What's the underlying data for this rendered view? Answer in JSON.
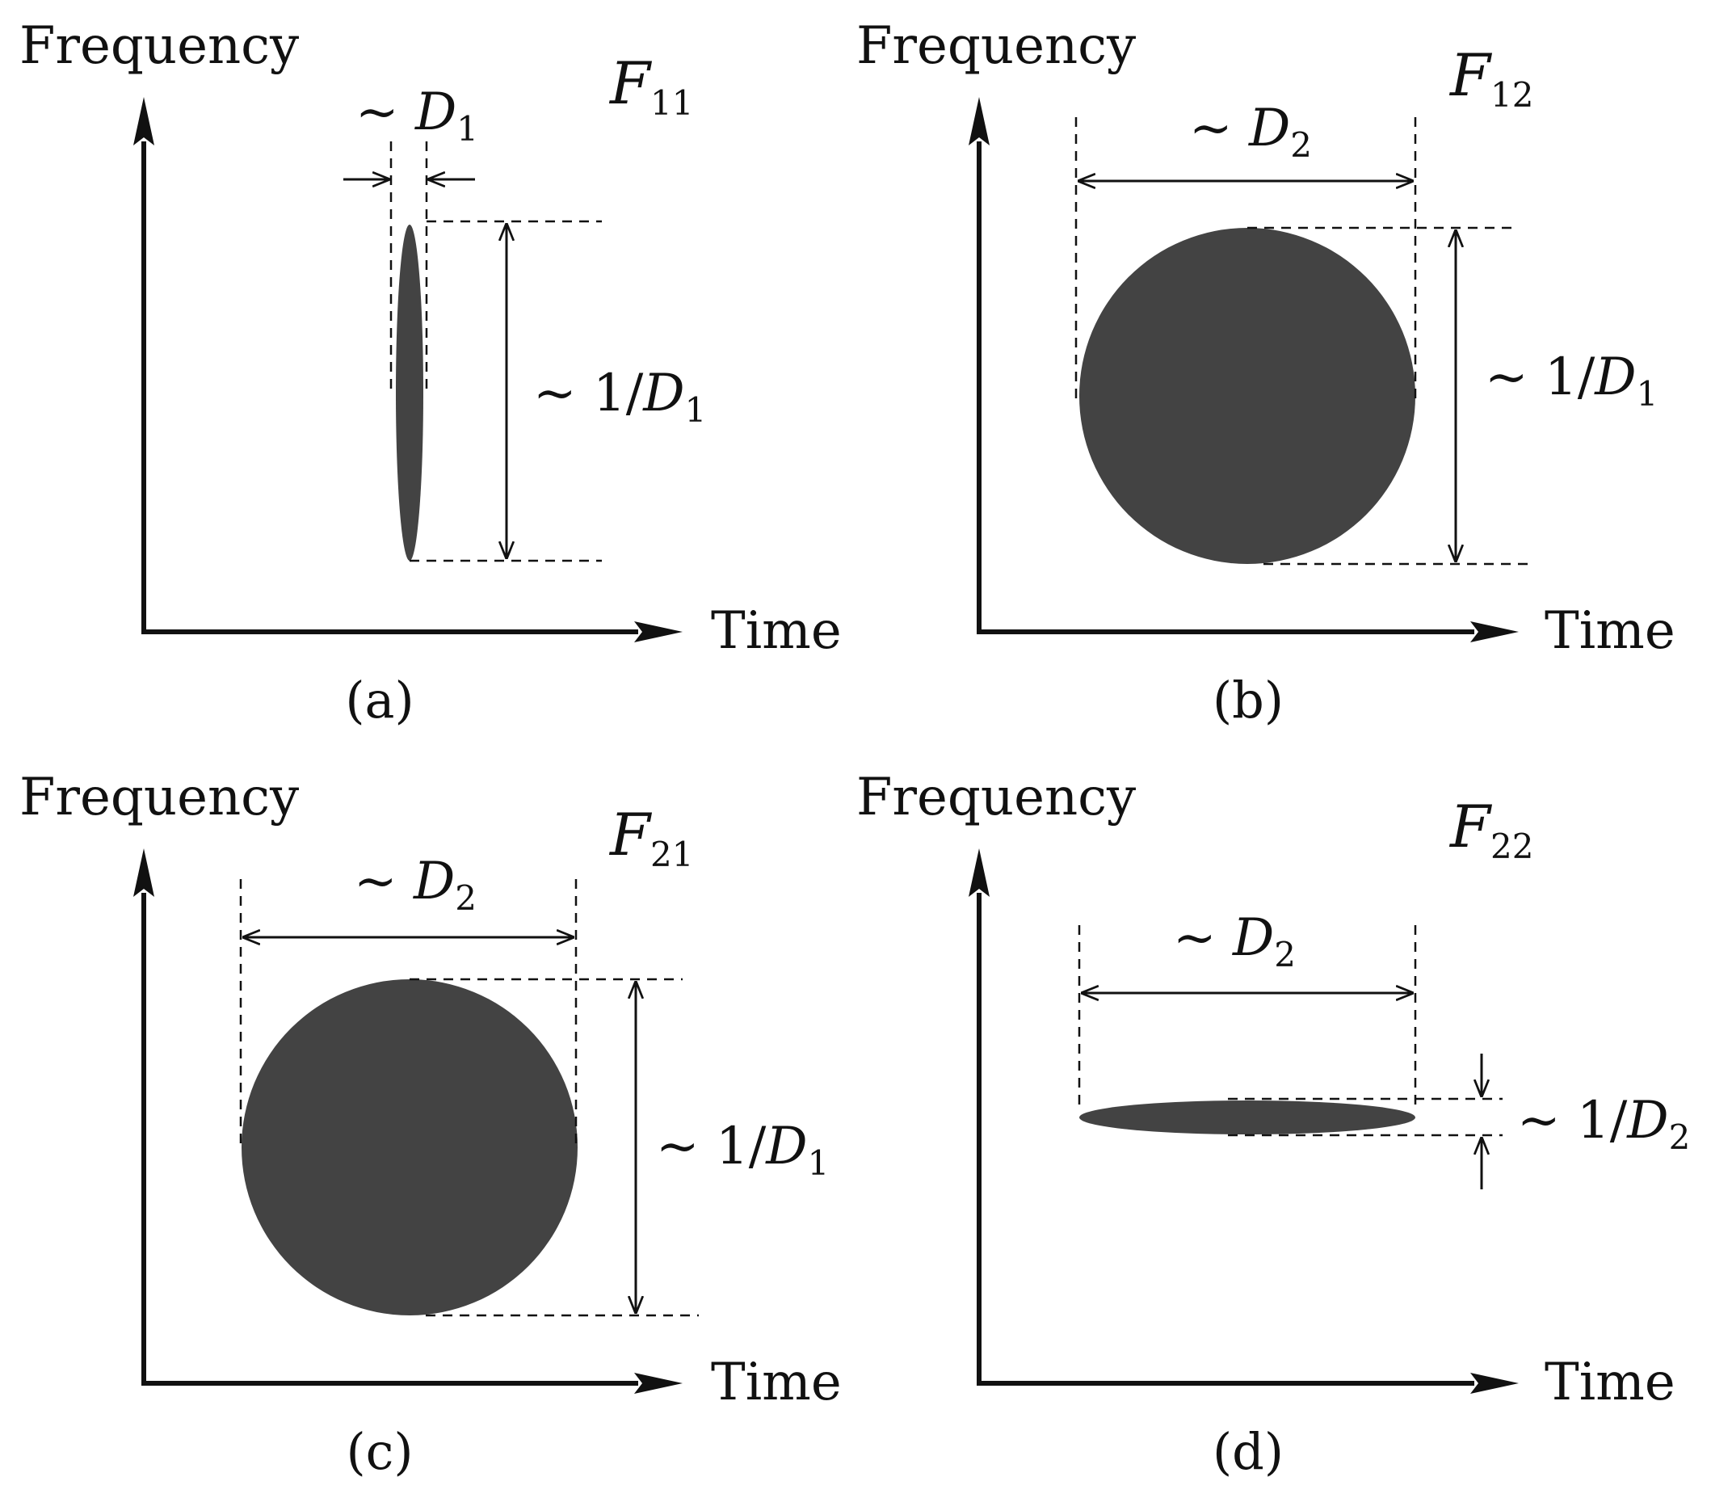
{
  "panels": [
    {
      "id": "a",
      "y_axis_label": "Frequency",
      "x_axis_label": "Time",
      "title_main": "F",
      "title_sub": "11",
      "width_label_prefix": "~ ",
      "width_label_var": "D",
      "width_label_sub": "1",
      "height_label_prefix": "~ 1/",
      "height_label_var": "D",
      "height_label_sub": "1",
      "caption": "(a)"
    },
    {
      "id": "b",
      "y_axis_label": "Frequency",
      "x_axis_label": "Time",
      "title_main": "F",
      "title_sub": "12",
      "width_label_prefix": "~ ",
      "width_label_var": "D",
      "width_label_sub": "2",
      "height_label_prefix": "~ 1/",
      "height_label_var": "D",
      "height_label_sub": "1",
      "caption": "(b)"
    },
    {
      "id": "c",
      "y_axis_label": "Frequency",
      "x_axis_label": "Time",
      "title_main": "F",
      "title_sub": "21",
      "width_label_prefix": "~ ",
      "width_label_var": "D",
      "width_label_sub": "2",
      "height_label_prefix": "~ 1/",
      "height_label_var": "D",
      "height_label_sub": "1",
      "caption": "(c)"
    },
    {
      "id": "d",
      "y_axis_label": "Frequency",
      "x_axis_label": "Time",
      "title_main": "F",
      "title_sub": "22",
      "width_label_prefix": "~ ",
      "width_label_var": "D",
      "width_label_sub": "2",
      "height_label_prefix": "~ 1/",
      "height_label_var": "D",
      "height_label_sub": "2",
      "caption": "(d)"
    }
  ],
  "colors": {
    "shape_fill": "#434343",
    "ink": "#111111"
  }
}
